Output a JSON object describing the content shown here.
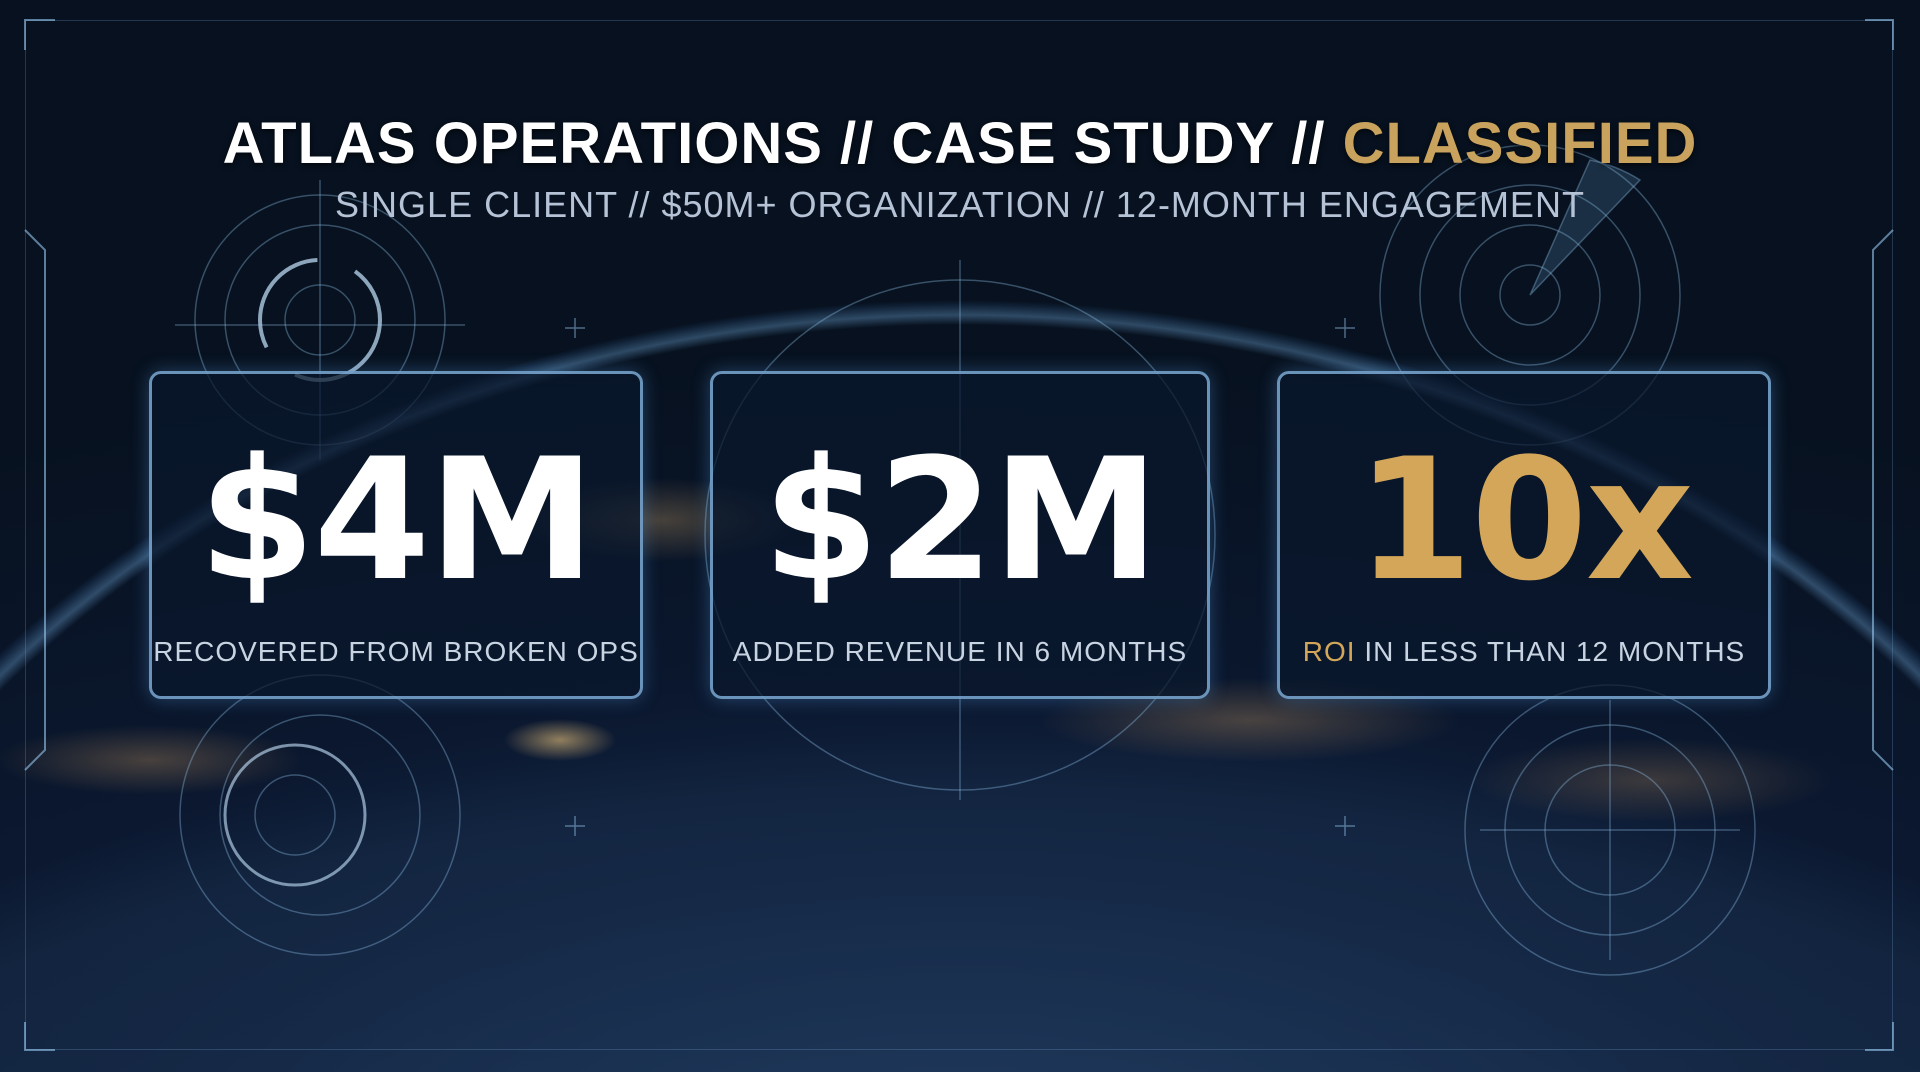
{
  "header": {
    "title_main": "ATLAS OPERATIONS // CASE STUDY // ",
    "title_highlight": "CLASSIFIED",
    "subtitle": "SINGLE CLIENT // $50M+ ORGANIZATION // 12-MONTH ENGAGEMENT"
  },
  "metrics": [
    {
      "value": "$4M",
      "label": "RECOVERED FROM BROKEN OPS"
    },
    {
      "value": "$2M",
      "label": "ADDED REVENUE IN 6 MONTHS"
    },
    {
      "value": "10x",
      "label_highlight": "ROI",
      "label": " IN LESS THAN 12 MONTHS"
    }
  ],
  "colors": {
    "accent_gold": "#d4a659",
    "background": "#0a1628",
    "hud_blue": "#8cbeeb"
  }
}
